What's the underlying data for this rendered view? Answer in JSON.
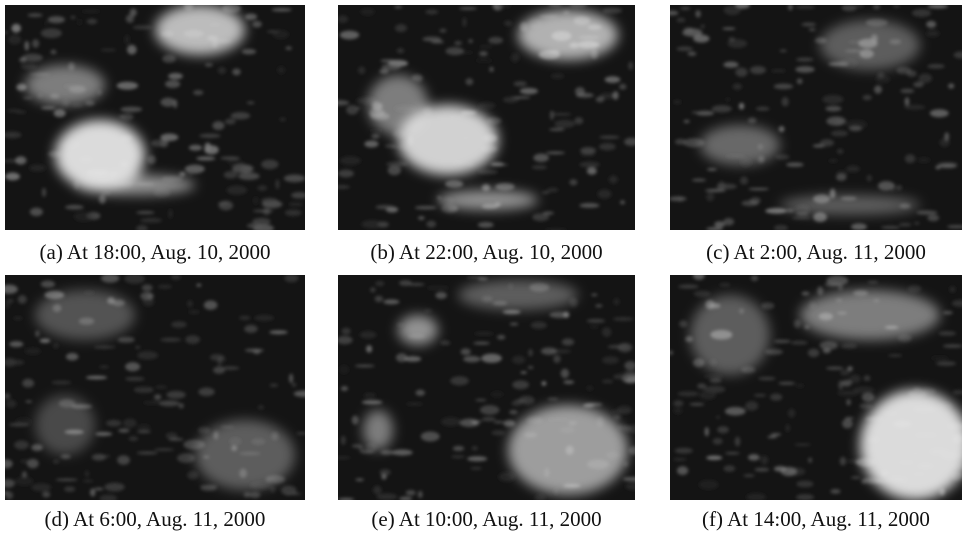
{
  "panels": [
    {
      "caption": "(a) At 18:00, Aug. 10, 2000"
    },
    {
      "caption": "(b) At 22:00, Aug. 10, 2000"
    },
    {
      "caption": "(c) At 2:00, Aug. 11, 2000"
    },
    {
      "caption": "(d) At 6:00, Aug. 11, 2000"
    },
    {
      "caption": "(e) At 10:00, Aug. 11, 2000"
    },
    {
      "caption": "(f) At 14:00, Aug. 11, 2000"
    }
  ]
}
